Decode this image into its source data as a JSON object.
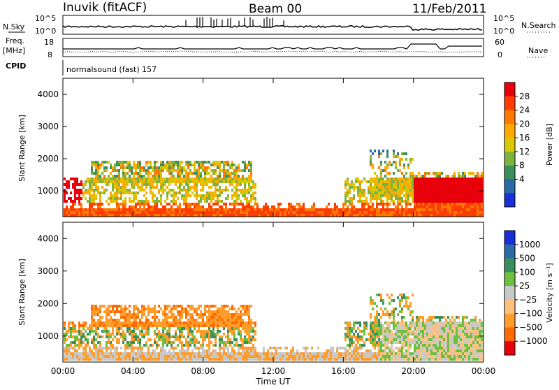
{
  "header": {
    "station": "Inuvik (fitACF)",
    "beam": "Beam 00",
    "date": "11/Feb/2011"
  },
  "top_panels": {
    "nsky_label": "N.Sky",
    "nsky_ticks": [
      "10^5",
      "10^0"
    ],
    "nsearch_label": "N.Search",
    "nsearch_ticks": [
      "10^5",
      "10^0"
    ],
    "freq_label": "Freq.",
    "freq_unit": "[MHz]",
    "freq_ticks": [
      "18",
      "8"
    ],
    "nave_label": "Nave",
    "nave_ticks": [
      "60",
      "0"
    ],
    "cpid_label": "CPID",
    "cpid_text": "normalsound (fast) 157"
  },
  "chart_data": [
    {
      "type": "heatmap",
      "name": "power",
      "ylabel": "Slant Range [km]",
      "ylim": [
        200,
        4500
      ],
      "yticks": [
        "1000",
        "2000",
        "3000",
        "4000"
      ],
      "xticks": [
        "00:00",
        "04:00",
        "08:00",
        "12:00",
        "16:00",
        "20:00",
        "00:00"
      ],
      "colorbar": {
        "label": "Power [dB]",
        "ticks": [
          "28",
          "24",
          "20",
          "16",
          "12",
          "8",
          "4"
        ],
        "colors": [
          "#e8000b",
          "#ff3c00",
          "#ff7800",
          "#ffaa00",
          "#d9c700",
          "#7cb340",
          "#3a8f5c",
          "#2c6aa6",
          "#1a2fd8"
        ]
      }
    },
    {
      "type": "heatmap",
      "name": "velocity",
      "ylabel": "Slant Range [km]",
      "ylim": [
        200,
        4500
      ],
      "yticks": [
        "1000",
        "2000",
        "3000",
        "4000"
      ],
      "xticks": [
        "00:00",
        "04:00",
        "08:00",
        "12:00",
        "16:00",
        "20:00",
        "00:00"
      ],
      "xlabel": "Time UT",
      "colorbar": {
        "label": "Velocity [m s⁻¹]",
        "ticks": [
          "1000",
          "500",
          "100",
          "25",
          "−25",
          "−100",
          "−500",
          "−1000"
        ],
        "colors": [
          "#1a2fd8",
          "#2c6aa6",
          "#3a8f5c",
          "#6cc040",
          "#c8c8c8",
          "#ffc080",
          "#ff9c2a",
          "#ff6a00",
          "#e8000b"
        ]
      }
    }
  ]
}
